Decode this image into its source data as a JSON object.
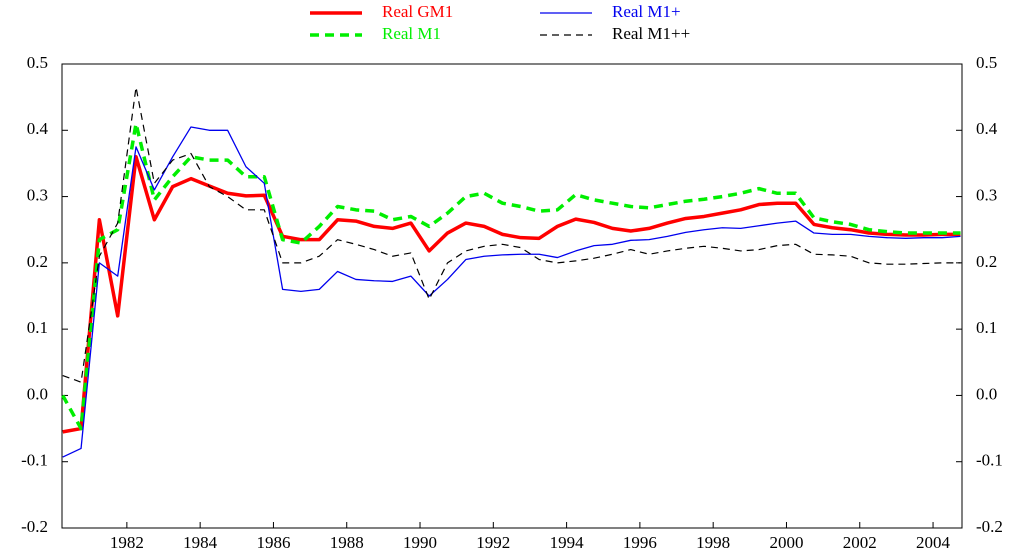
{
  "chart_data": {
    "type": "line",
    "x": [
      1980.25,
      1980.75,
      1981.25,
      1981.75,
      1982.25,
      1982.75,
      1983.25,
      1983.75,
      1984.25,
      1984.75,
      1985.25,
      1985.75,
      1986.25,
      1986.75,
      1987.25,
      1987.75,
      1988.25,
      1988.75,
      1989.25,
      1989.75,
      1990.25,
      1990.75,
      1991.25,
      1991.75,
      1992.25,
      1992.75,
      1993.25,
      1993.75,
      1994.25,
      1994.75,
      1995.25,
      1995.75,
      1996.25,
      1996.75,
      1997.25,
      1997.75,
      1998.25,
      1998.75,
      1999.25,
      1999.75,
      2000.25,
      2000.75,
      2001.25,
      2001.75,
      2002.25,
      2002.75,
      2003.25,
      2003.75,
      2004.25,
      2004.75
    ],
    "series": [
      {
        "name": "Real GM1",
        "color": "#ff0000",
        "line_width": 3.5,
        "dash": false,
        "values": [
          -0.055,
          -0.05,
          0.265,
          0.12,
          0.36,
          0.265,
          0.315,
          0.327,
          0.316,
          0.305,
          0.301,
          0.302,
          0.24,
          0.235,
          0.235,
          0.265,
          0.263,
          0.255,
          0.252,
          0.26,
          0.218,
          0.245,
          0.26,
          0.255,
          0.243,
          0.238,
          0.237,
          0.255,
          0.266,
          0.261,
          0.252,
          0.248,
          0.252,
          0.26,
          0.267,
          0.27,
          0.275,
          0.28,
          0.288,
          0.29,
          0.29,
          0.258,
          0.253,
          0.25,
          0.245,
          0.243,
          0.242,
          0.242,
          0.243,
          0.243
        ]
      },
      {
        "name": "Real M1",
        "color": "#00ee00",
        "line_width": 3.5,
        "dash": true,
        "values": [
          0.0,
          -0.05,
          0.235,
          0.25,
          0.41,
          0.295,
          0.33,
          0.36,
          0.355,
          0.355,
          0.33,
          0.33,
          0.235,
          0.23,
          0.255,
          0.285,
          0.28,
          0.278,
          0.265,
          0.27,
          0.255,
          0.275,
          0.3,
          0.305,
          0.29,
          0.285,
          0.278,
          0.28,
          0.303,
          0.295,
          0.29,
          0.285,
          0.283,
          0.288,
          0.293,
          0.296,
          0.3,
          0.305,
          0.312,
          0.305,
          0.305,
          0.268,
          0.262,
          0.258,
          0.25,
          0.247,
          0.245,
          0.245,
          0.245,
          0.245
        ]
      },
      {
        "name": "Real M1+",
        "color": "#0000ee",
        "line_width": 1.3,
        "dash": false,
        "values": [
          -0.093,
          -0.08,
          0.2,
          0.18,
          0.375,
          0.31,
          0.36,
          0.405,
          0.4,
          0.4,
          0.345,
          0.32,
          0.16,
          0.157,
          0.16,
          0.187,
          0.175,
          0.173,
          0.172,
          0.18,
          0.15,
          0.175,
          0.205,
          0.21,
          0.212,
          0.213,
          0.213,
          0.208,
          0.218,
          0.226,
          0.228,
          0.234,
          0.235,
          0.24,
          0.246,
          0.25,
          0.253,
          0.252,
          0.256,
          0.26,
          0.263,
          0.245,
          0.243,
          0.243,
          0.24,
          0.238,
          0.237,
          0.238,
          0.238,
          0.24
        ]
      },
      {
        "name": "Real M1++",
        "color": "#000000",
        "line_width": 1.2,
        "dash": true,
        "values": [
          0.03,
          0.02,
          0.21,
          0.26,
          0.465,
          0.32,
          0.355,
          0.365,
          0.315,
          0.3,
          0.28,
          0.28,
          0.2,
          0.2,
          0.21,
          0.235,
          0.228,
          0.22,
          0.21,
          0.215,
          0.145,
          0.2,
          0.218,
          0.225,
          0.228,
          0.223,
          0.205,
          0.2,
          0.203,
          0.207,
          0.213,
          0.22,
          0.213,
          0.218,
          0.222,
          0.225,
          0.222,
          0.218,
          0.22,
          0.226,
          0.228,
          0.213,
          0.212,
          0.21,
          0.2,
          0.198,
          0.198,
          0.199,
          0.2,
          0.2
        ]
      }
    ],
    "xlim": [
      1980.23,
      2004.79
    ],
    "xticks": [
      1982,
      1984,
      1986,
      1988,
      1990,
      1992,
      1994,
      1996,
      1998,
      2000,
      2002,
      2004
    ],
    "ylim": [
      -0.2,
      0.5
    ],
    "yticks": [
      -0.2,
      -0.1,
      {
        "value": 0,
        "label": "0.0"
      },
      0.1,
      0.2,
      0.3,
      0.4,
      0.5
    ],
    "right_axis": true,
    "grid": false
  }
}
